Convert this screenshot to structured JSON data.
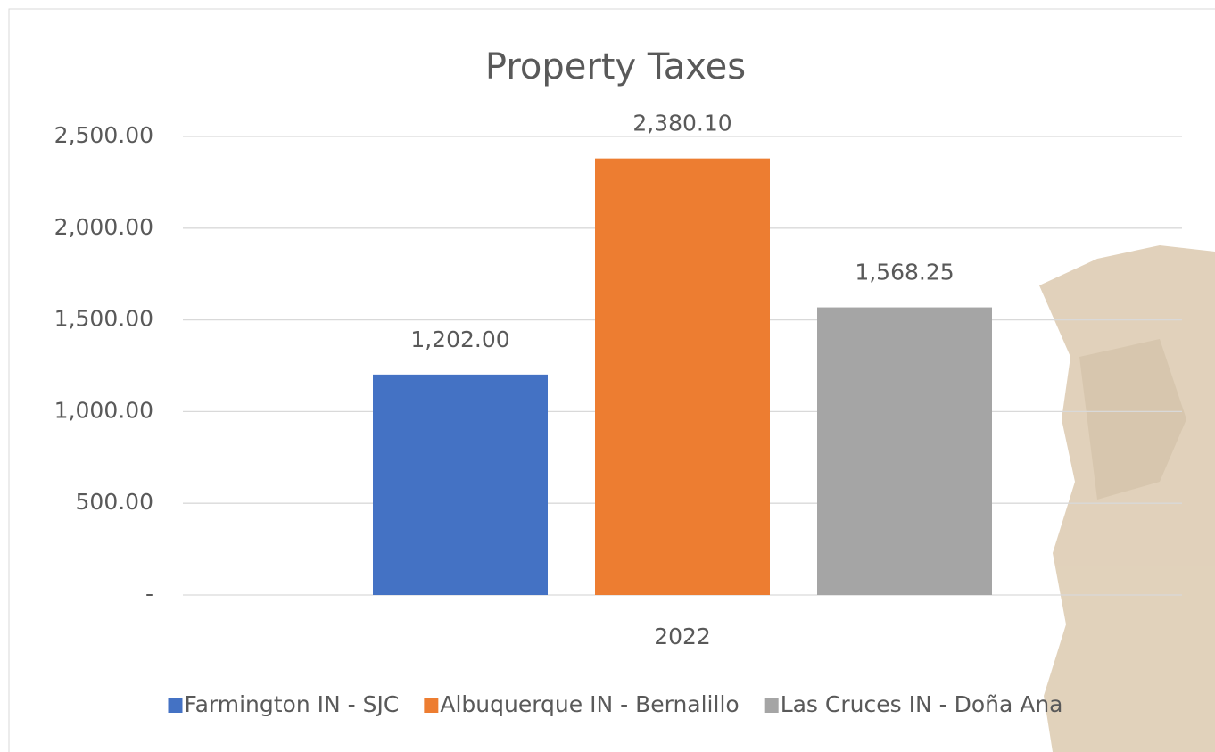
{
  "chart_data": {
    "type": "bar",
    "title": "Property Taxes",
    "categories": [
      "2022"
    ],
    "series": [
      {
        "name": "Farmington IN - SJC",
        "color": "#4472c4",
        "values": [
          1202
        ],
        "value_labels": [
          "1,202.00"
        ]
      },
      {
        "name": "Albuquerque IN - Bernalillo",
        "color": "#ed7d31",
        "values": [
          2380.1
        ],
        "value_labels": [
          "2,380.10"
        ]
      },
      {
        "name": "Las Cruces IN - Doña Ana",
        "color": "#a5a5a5",
        "values": [
          1568.25
        ],
        "value_labels": [
          "1,568.25"
        ]
      }
    ],
    "ylim": [
      0,
      2500
    ],
    "yticks": [
      {
        "value": 0,
        "label": "-"
      },
      {
        "value": 500,
        "label": "500.00"
      },
      {
        "value": 1000,
        "label": "1,000.00"
      },
      {
        "value": 1500,
        "label": "1,500.00"
      },
      {
        "value": 2000,
        "label": "2,000.00"
      },
      {
        "value": 2500,
        "label": "2,500.00"
      }
    ],
    "grid": true,
    "legend": "bottom"
  }
}
